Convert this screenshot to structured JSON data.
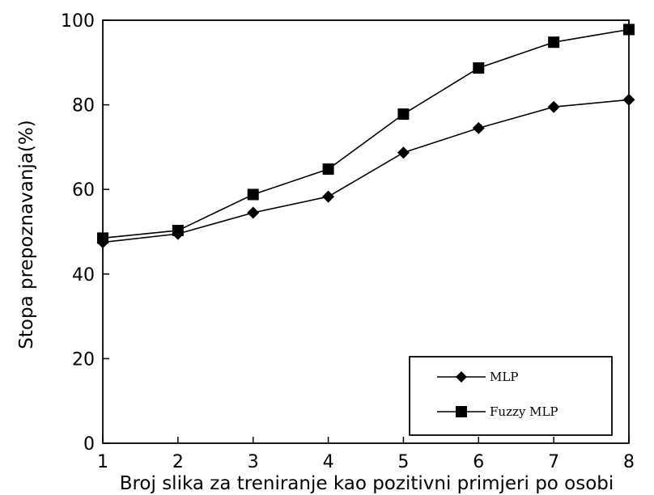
{
  "chart_data": {
    "type": "line",
    "xlabel": "Broj slika za treniranje kao pozitivni primjeri po osobi",
    "ylabel": "Stopa prepoznavanja(%)",
    "x": [
      1,
      2,
      3,
      4,
      5,
      6,
      7,
      8
    ],
    "xlim": [
      1,
      8
    ],
    "ylim": [
      0,
      100
    ],
    "yticks": [
      0,
      20,
      40,
      60,
      80,
      100
    ],
    "xticks": [
      1,
      2,
      3,
      4,
      5,
      6,
      7,
      8
    ],
    "grid": false,
    "legend_position": "bottom-right",
    "series": [
      {
        "name": "MLP",
        "marker": "diamond",
        "color": "#000000",
        "values": [
          47.5,
          49.5,
          54.5,
          58.3,
          68.7,
          74.5,
          79.5,
          81.2
        ]
      },
      {
        "name": "Fuzzy MLP",
        "marker": "square",
        "color": "#000000",
        "values": [
          48.5,
          50.3,
          58.8,
          64.8,
          77.8,
          88.7,
          94.8,
          97.8
        ]
      }
    ]
  }
}
